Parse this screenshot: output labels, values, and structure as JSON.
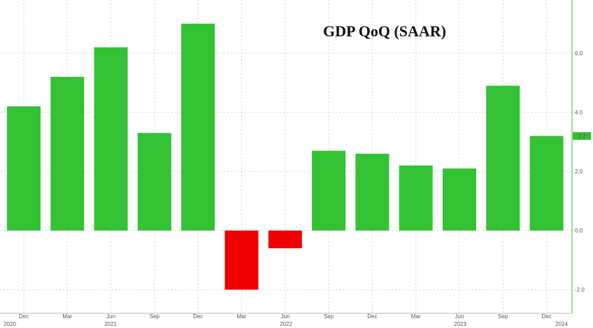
{
  "chart_data": {
    "type": "bar",
    "title": "GDP QoQ (SAAR)",
    "categories": [
      "Dec 2020",
      "Mar 2021",
      "Jun 2021",
      "Sep 2021",
      "Dec 2021",
      "Mar 2022",
      "Jun 2022",
      "Sep 2022",
      "Dec 2022",
      "Mar 2023",
      "Jun 2023",
      "Sep 2023",
      "Dec 2023"
    ],
    "values": [
      4.2,
      5.2,
      6.2,
      3.3,
      7.0,
      -2.0,
      -0.6,
      2.7,
      2.6,
      2.2,
      2.1,
      4.9,
      3.2
    ],
    "ylim": [
      -2.8,
      7.8
    ],
    "y_ticks": [
      6.0,
      4.0,
      2.0,
      0.0,
      -2.0
    ],
    "y_tick_labels": [
      "6.0",
      "4.0",
      "2.0",
      "0.0",
      "-2.0"
    ],
    "x_month_labels": [
      "Dec",
      "Mar",
      "Jun",
      "Sep",
      "Dec",
      "Mar",
      "Jun",
      "Sep",
      "Dec",
      "Mar",
      "Jun",
      "Sep",
      "Dec"
    ],
    "x_year_labels": [
      "2020",
      "2021",
      "2022",
      "2023",
      "2024"
    ],
    "last_value_label": "3.2",
    "grid": true,
    "positive_color": "#33c233",
    "negative_color": "#ee0000",
    "axis_side": "right"
  }
}
